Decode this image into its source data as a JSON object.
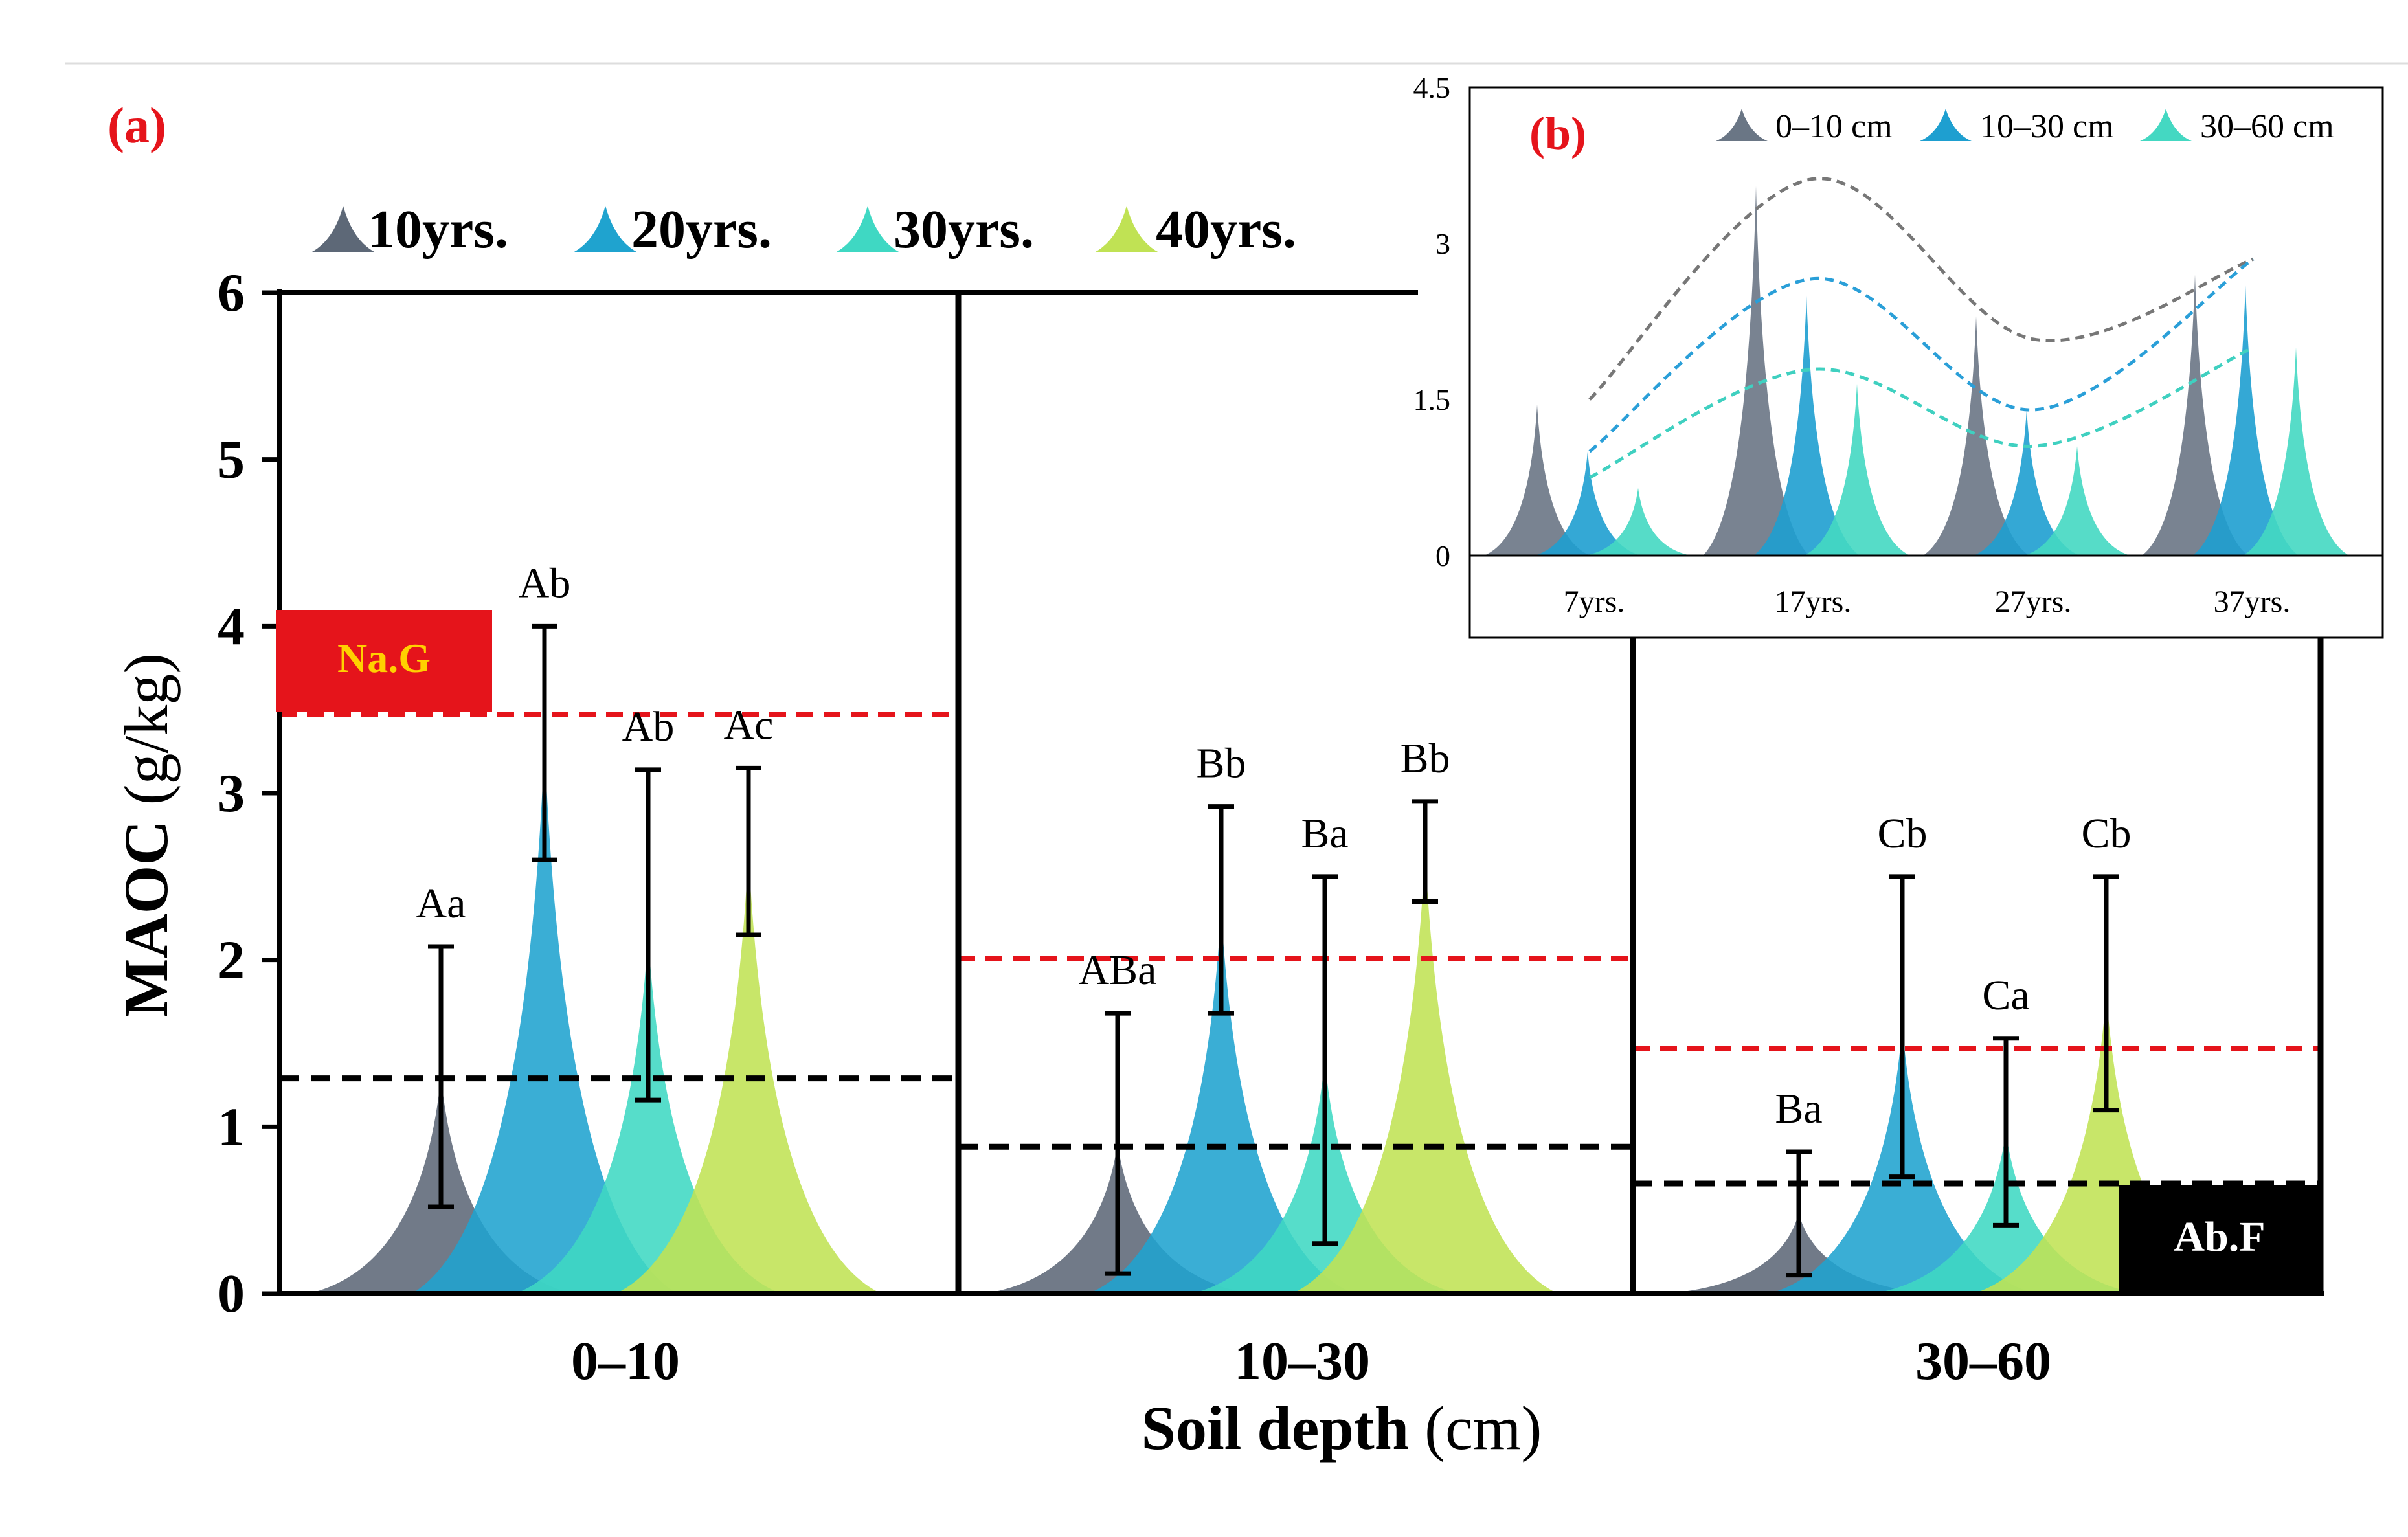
{
  "colors": {
    "10yrs": "#5d6877",
    "20yrs": "#1fa3cf",
    "30yrs": "#3fd8c3",
    "40yrs": "#c0e254",
    "red": "#e5141b",
    "black": "#000000",
    "inset_0_10": "#6a7685",
    "inset_10_30": "#1e9fd0",
    "inset_30_60": "#44d8c2"
  },
  "chart_data": [
    {
      "panel_label": "(a)",
      "type": "bar",
      "ylabel_bold": "MAOC",
      "ylabel_rest": " (g/kg)",
      "xlabel_bold": "Soil depth",
      "xlabel_rest": " (cm)",
      "ylim": [
        0,
        6
      ],
      "yticks": [
        "0",
        "1",
        "2",
        "3",
        "4",
        "5",
        "6"
      ],
      "categories": [
        "0–10",
        "10–30",
        "30–60"
      ],
      "legend": [
        "10yrs.",
        "20yrs.",
        "30yrs.",
        "40yrs."
      ],
      "series": [
        {
          "name": "10yrs.",
          "values": [
            1.3,
            0.9,
            0.48
          ],
          "errors": [
            0.78,
            0.78,
            0.37
          ],
          "letters": [
            "Aa",
            "ABa",
            "Ba"
          ]
        },
        {
          "name": "20yrs.",
          "values": [
            3.3,
            2.3,
            1.6
          ],
          "errors": [
            0.7,
            0.62,
            0.9
          ],
          "letters": [
            "Ab",
            "Bb",
            "Cb"
          ]
        },
        {
          "name": "30yrs.",
          "values": [
            2.15,
            1.4,
            0.97
          ],
          "errors": [
            0.99,
            1.1,
            0.56
          ],
          "letters": [
            "Ab",
            "Ba",
            "Ca"
          ]
        },
        {
          "name": "40yrs.",
          "values": [
            2.65,
            2.65,
            1.8
          ],
          "errors": [
            0.5,
            0.3,
            0.7
          ],
          "letters": [
            "Ac",
            "Bb",
            "Cb"
          ]
        }
      ],
      "red_reference": [
        3.47,
        2.01,
        1.47
      ],
      "black_reference": [
        1.29,
        0.88,
        0.66
      ],
      "red_label": "Na.G",
      "black_label": "Ab.F"
    },
    {
      "panel_label": "(b)",
      "type": "bar",
      "ylim": [
        0,
        4.5
      ],
      "yticks": [
        "0",
        "1.5",
        "3",
        "4.5"
      ],
      "categories": [
        "7yrs.",
        "17yrs.",
        "27yrs.",
        "37yrs."
      ],
      "legend": [
        "0–10 cm",
        "10–30 cm",
        "30–60 cm"
      ],
      "series": [
        {
          "name": "0–10 cm",
          "values": [
            1.45,
            3.55,
            2.3,
            2.7
          ],
          "trend": [
            1.5,
            3.62,
            2.08,
            2.85
          ]
        },
        {
          "name": "10–30 cm",
          "values": [
            1.0,
            2.5,
            1.4,
            2.6
          ],
          "trend": [
            1.0,
            2.66,
            1.4,
            2.85
          ]
        },
        {
          "name": "30–60 cm",
          "values": [
            0.65,
            1.65,
            1.05,
            2.0
          ],
          "trend": [
            0.75,
            1.79,
            1.05,
            2.0
          ]
        }
      ]
    }
  ]
}
